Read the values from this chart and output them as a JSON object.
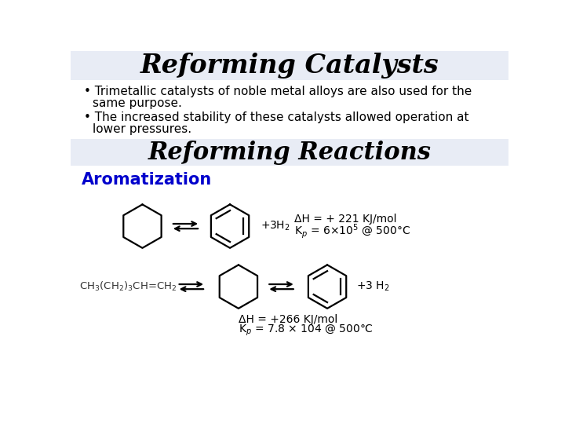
{
  "title1": "Reforming Catalysts",
  "title2": "Reforming Reactions",
  "subtitle": "Aromatization",
  "bullet1": "Trimetallic catalysts of noble metal alloys are also used for the\nsame purpose.",
  "bullet2": "The increased stability of these catalysts allowed operation at\nlower pressures.",
  "header_bg": "#e8ecf5",
  "bg_color": "#ffffff",
  "title_color": "#000000",
  "subtitle_color": "#0000cc",
  "bullet_color": "#000000"
}
